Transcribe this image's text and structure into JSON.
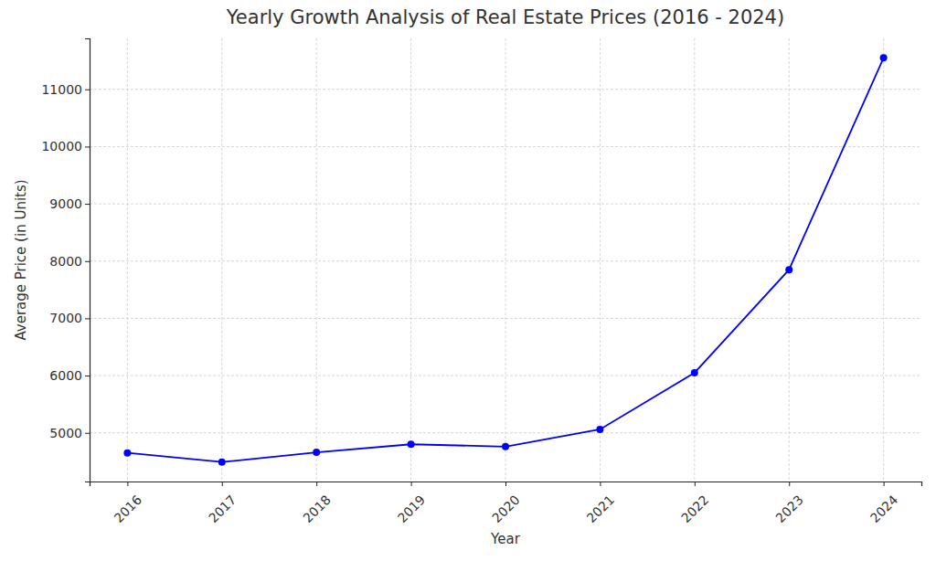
{
  "chart_data": {
    "type": "line",
    "title": "Yearly Growth Analysis of Real Estate Prices (2016 - 2024)",
    "x_label": "Year",
    "y_label": "Average Price (in Units)",
    "x": [
      2016,
      2017,
      2018,
      2019,
      2020,
      2021,
      2022,
      2023,
      2024
    ],
    "values": [
      4650,
      4490,
      4660,
      4800,
      4760,
      5060,
      6050,
      7850,
      11550
    ],
    "color": "#0000ff",
    "marker": "circle",
    "line_style": "solid",
    "xlim": [
      2015.6,
      2024.4
    ],
    "xticks": [
      2016,
      2017,
      2018,
      2019,
      2020,
      2021,
      2022,
      2023,
      2024
    ],
    "ylim": [
      4150,
      11890
    ],
    "yticks": [
      5000,
      6000,
      7000,
      8000,
      9000,
      10000,
      11000
    ],
    "grid": true
  }
}
